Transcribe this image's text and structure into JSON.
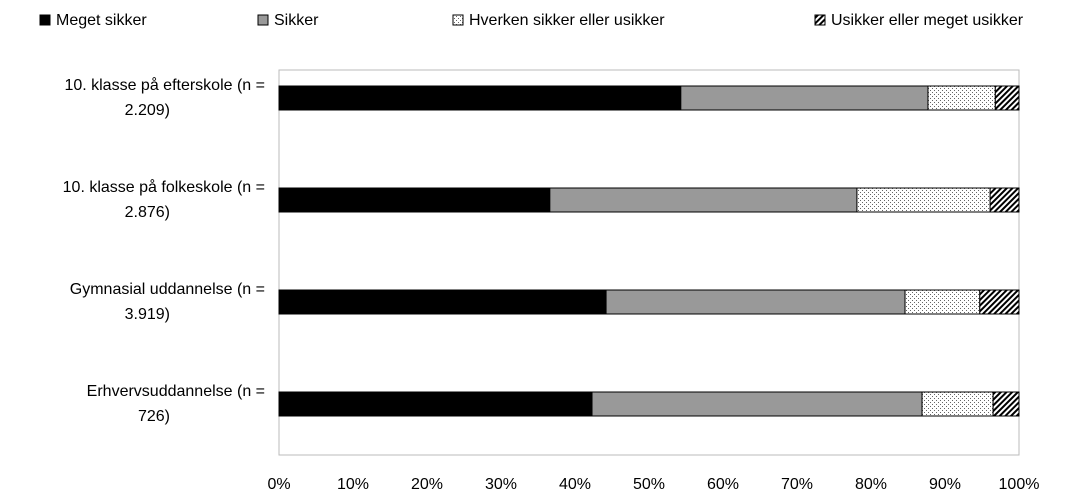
{
  "chart_data": {
    "type": "stacked-barh",
    "categories": [
      [
        "10. klasse på efterskole (n =",
        "2.209)"
      ],
      [
        "10. klasse på folkeskole (n =",
        "2.876)"
      ],
      [
        "Gymnasial uddannelse (n =",
        "3.919)"
      ],
      [
        "Erhvervsuddannelse (n =",
        "726)"
      ]
    ],
    "series": [
      {
        "name": "Meget sikker",
        "color": "#000000",
        "values": [
          54.3,
          36.6,
          44.2,
          42.3
        ]
      },
      {
        "name": "Sikker",
        "color": "#999999",
        "values": [
          33.4,
          41.5,
          40.4,
          44.6
        ]
      },
      {
        "name": "Hverken sikker eller usikker",
        "color": "#ffffff",
        "pattern": "dots",
        "values": [
          9.1,
          18.0,
          10.1,
          9.6
        ]
      },
      {
        "name": "Usikker eller meget usikker",
        "color": "#ffffff",
        "pattern": "hatch",
        "values": [
          3.2,
          3.9,
          5.3,
          3.5
        ]
      }
    ],
    "xlim": [
      0,
      100
    ],
    "xticks": [
      {
        "value": 0,
        "label": "0%"
      },
      {
        "value": 10,
        "label": "10%"
      },
      {
        "value": 20,
        "label": "20%"
      },
      {
        "value": 30,
        "label": "30%"
      },
      {
        "value": 40,
        "label": "40%"
      },
      {
        "value": 50,
        "label": "50%"
      },
      {
        "value": 60,
        "label": "60%"
      },
      {
        "value": 70,
        "label": "70%"
      },
      {
        "value": 80,
        "label": "80%"
      },
      {
        "value": 90,
        "label": "90%"
      },
      {
        "value": 100,
        "label": "100%"
      }
    ],
    "legend": "top"
  }
}
